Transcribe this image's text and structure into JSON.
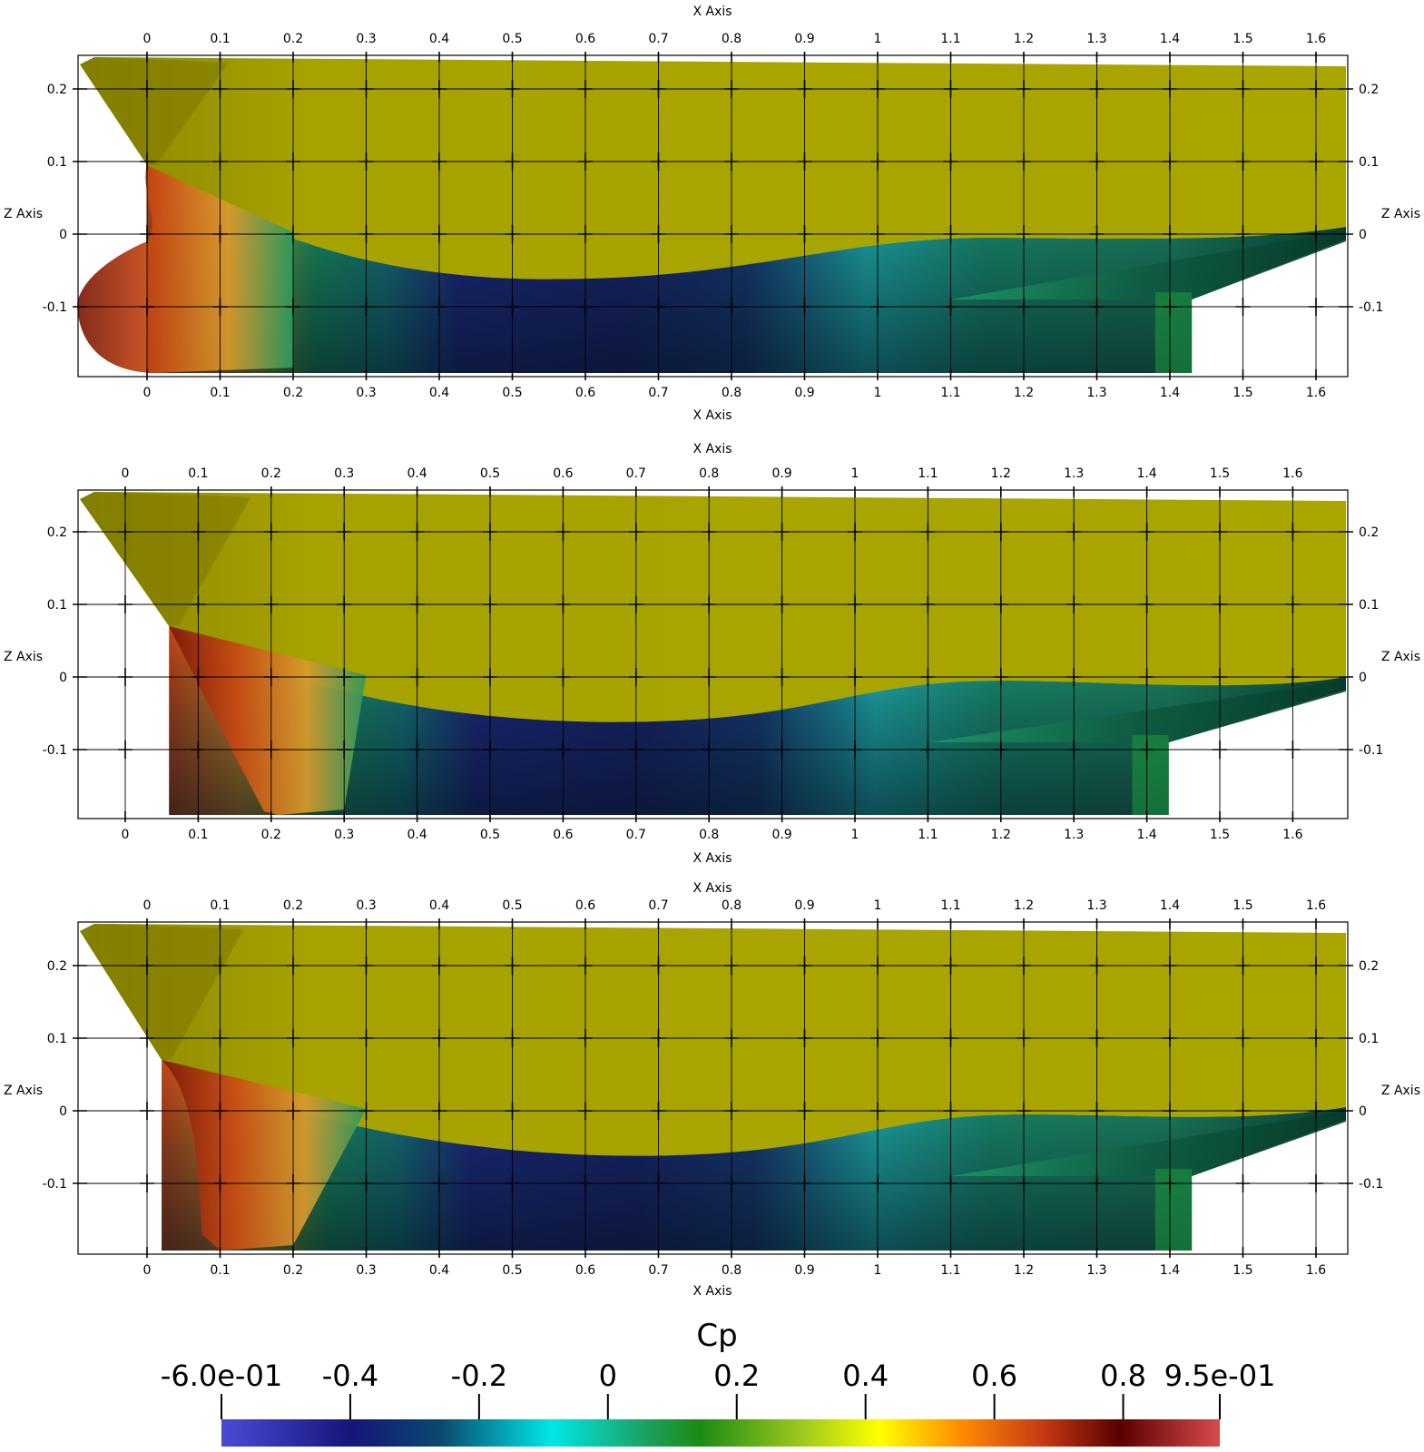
{
  "chart_data": [
    {
      "type": "heatmap",
      "panel": "top",
      "xlabel": "X Axis",
      "ylabel": "Z Axis",
      "xlim": [
        -0.095,
        1.65
      ],
      "ylim": [
        -0.195,
        0.245
      ],
      "x_ticks": [
        "0",
        "0.1",
        "0.2",
        "0.3",
        "0.4",
        "0.5",
        "0.6",
        "0.7",
        "0.8",
        "0.9",
        "1",
        "1.1",
        "1.2",
        "1.3",
        "1.4",
        "1.5",
        "1.6"
      ],
      "z_ticks": [
        "0.2",
        "0.1",
        "0",
        "-0.1"
      ],
      "grid": true
    },
    {
      "type": "heatmap",
      "panel": "middle",
      "xlabel": "X Axis",
      "ylabel": "Z Axis",
      "xlim": [
        -0.06,
        1.68
      ],
      "ylim": [
        -0.195,
        0.255
      ],
      "x_ticks": [
        "0",
        "0.1",
        "0.2",
        "0.3",
        "0.4",
        "0.5",
        "0.6",
        "0.7",
        "0.8",
        "0.9",
        "1",
        "1.1",
        "1.2",
        "1.3",
        "1.4",
        "1.5",
        "1.6"
      ],
      "z_ticks": [
        "0.2",
        "0.1",
        "0",
        "-0.1"
      ],
      "grid": true
    },
    {
      "type": "heatmap",
      "panel": "bottom",
      "xlabel": "X Axis",
      "ylabel": "Z Axis",
      "xlim": [
        -0.095,
        1.65
      ],
      "ylim": [
        -0.195,
        0.245
      ],
      "x_ticks": [
        "0",
        "0.1",
        "0.2",
        "0.3",
        "0.4",
        "0.5",
        "0.6",
        "0.7",
        "0.8",
        "0.9",
        "1",
        "1.1",
        "1.2",
        "1.3",
        "1.4",
        "1.5",
        "1.6"
      ],
      "z_ticks": [
        "0.2",
        "0.1",
        "0",
        "-0.1"
      ],
      "grid": true
    }
  ],
  "colorbar": {
    "title": "Cp",
    "range": [
      -0.6,
      0.95
    ],
    "labels": [
      "-6.0e-01",
      "-0.4",
      "-0.2",
      "0",
      "0.2",
      "0.4",
      "0.6",
      "0.8",
      "9.5e-01"
    ],
    "label_values": [
      -0.6,
      -0.4,
      -0.2,
      0,
      0.2,
      0.4,
      0.6,
      0.8,
      0.95
    ],
    "colors": [
      "#4a4ad8",
      "#15157a",
      "#0a5a6e",
      "#00e6e6",
      "#1c9e5a",
      "#1e8a14",
      "#9bc81e",
      "#ffff00",
      "#ff8c00",
      "#c83c14",
      "#5a0000",
      "#d84a4a"
    ]
  },
  "colors": {
    "hull_dry": "#a8a400",
    "bow_red": "#c04418",
    "wave_green": "#1f9c6a",
    "cyan": "#20c8c8",
    "deep_blue": "#202080",
    "dark_teal": "#0a3a40"
  }
}
